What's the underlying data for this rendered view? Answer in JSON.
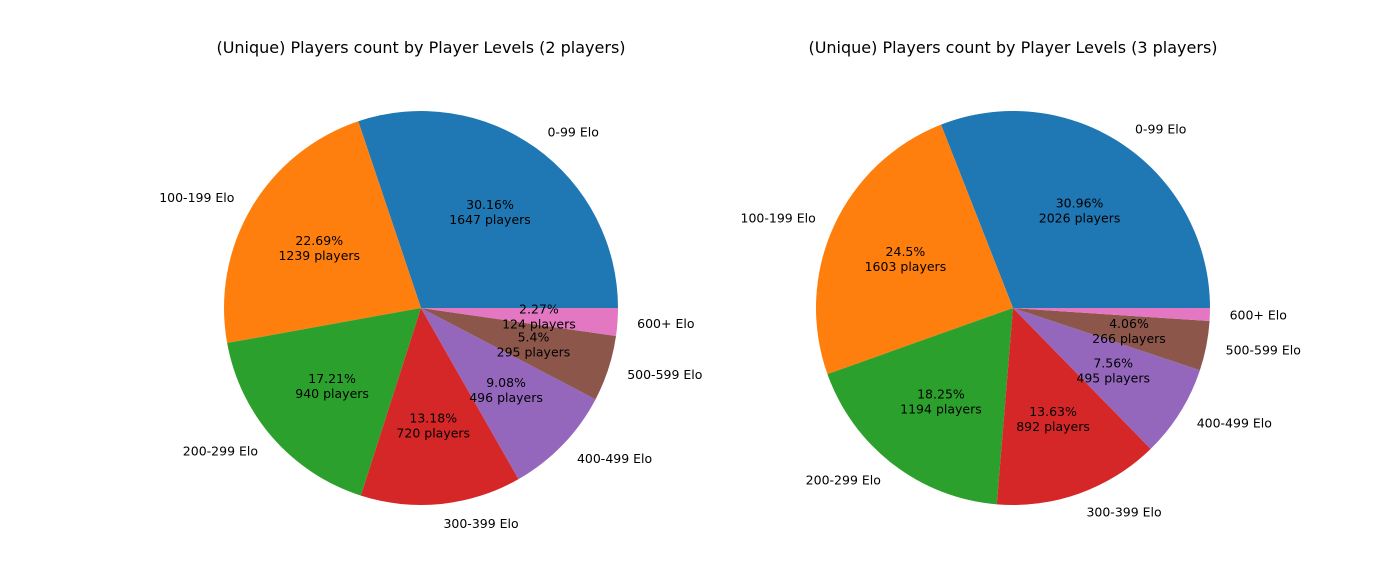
{
  "chart_data": [
    {
      "type": "pie",
      "title": "(Unique) Players count by Player Levels (2 players)",
      "categories": [
        "0-99 Elo",
        "100-199 Elo",
        "200-299 Elo",
        "300-399 Elo",
        "400-499 Elo",
        "500-599 Elo",
        "600+ Elo"
      ],
      "values": [
        1647,
        1239,
        940,
        720,
        496,
        295,
        124
      ],
      "percent_labels": [
        "30.16%",
        "22.69%",
        "17.21%",
        "13.18%",
        "9.08%",
        "5.4%",
        "2.27%"
      ],
      "count_labels": [
        "1647 players",
        "1239 players",
        "940 players",
        "720 players",
        "496 players",
        "295 players",
        "124 players"
      ],
      "colors": [
        "#1f77b4",
        "#ff7f0e",
        "#2ca02c",
        "#d62728",
        "#9467bd",
        "#8c564b",
        "#e377c2"
      ],
      "start_angle_deg": 0,
      "direction": "counterclockwise"
    },
    {
      "type": "pie",
      "title": "(Unique) Players count by Player Levels (3 players)",
      "categories": [
        "0-99 Elo",
        "100-199 Elo",
        "200-299 Elo",
        "300-399 Elo",
        "400-499 Elo",
        "500-599 Elo",
        "600+ Elo"
      ],
      "values": [
        2026,
        1603,
        1194,
        892,
        495,
        266,
        69
      ],
      "percent_labels": [
        "30.96%",
        "24.5%",
        "18.25%",
        "13.63%",
        "7.56%",
        "4.06%",
        ""
      ],
      "count_labels": [
        "2026 players",
        "1603 players",
        "1194 players",
        "892 players",
        "495 players",
        "266 players",
        ""
      ],
      "colors": [
        "#1f77b4",
        "#ff7f0e",
        "#2ca02c",
        "#d62728",
        "#9467bd",
        "#8c564b",
        "#e377c2"
      ],
      "start_angle_deg": 0,
      "direction": "counterclockwise"
    }
  ]
}
